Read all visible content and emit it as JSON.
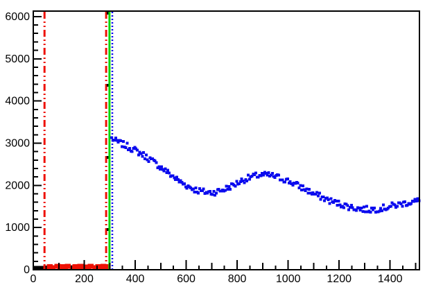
{
  "window": {
    "background": "#ffffff",
    "kind": "root-style-plot"
  },
  "chart_data": {
    "type": "scatter",
    "title": "",
    "subtitle": "",
    "xlabel": "",
    "ylabel": "",
    "grid": false,
    "legend": null,
    "xlim": [
      0,
      1515
    ],
    "ylim": [
      0,
      6130
    ],
    "axis_color": "#000000",
    "x_axis": {
      "major_ticks": [
        0,
        200,
        400,
        600,
        800,
        1000,
        1200,
        1400
      ],
      "major_labels": [
        "0",
        "200",
        "400",
        "600",
        "800",
        "1000",
        "1200",
        "1400"
      ],
      "medium_tick_step": 100,
      "minor_tick_step": 50
    },
    "y_axis": {
      "major_ticks": [
        0,
        1000,
        2000,
        3000,
        4000,
        5000,
        6000
      ],
      "major_labels": [
        "0",
        "1000",
        "2000",
        "3000",
        "4000",
        "5000",
        "6000"
      ],
      "minor_tick_step": 200
    },
    "series": [
      {
        "name": "decaying-oscillation-data",
        "type": "scatter",
        "marker": "filled-square",
        "marker_size_px": 4,
        "color": "#0b0bee",
        "point_step": 5,
        "noise_amplitude": 75,
        "anchors": [
          [
            308,
            3120
          ],
          [
            320,
            3060
          ],
          [
            340,
            3000
          ],
          [
            360,
            2950
          ],
          [
            380,
            2890
          ],
          [
            400,
            2830
          ],
          [
            420,
            2760
          ],
          [
            440,
            2690
          ],
          [
            460,
            2610
          ],
          [
            480,
            2520
          ],
          [
            500,
            2430
          ],
          [
            520,
            2340
          ],
          [
            540,
            2250
          ],
          [
            560,
            2160
          ],
          [
            580,
            2070
          ],
          [
            600,
            2000
          ],
          [
            620,
            1940
          ],
          [
            640,
            1890
          ],
          [
            660,
            1855
          ],
          [
            680,
            1835
          ],
          [
            700,
            1830
          ],
          [
            720,
            1850
          ],
          [
            740,
            1885
          ],
          [
            760,
            1930
          ],
          [
            780,
            1990
          ],
          [
            800,
            2055
          ],
          [
            820,
            2115
          ],
          [
            840,
            2165
          ],
          [
            860,
            2205
          ],
          [
            880,
            2230
          ],
          [
            900,
            2245
          ],
          [
            920,
            2245
          ],
          [
            940,
            2225
          ],
          [
            960,
            2190
          ],
          [
            980,
            2150
          ],
          [
            1000,
            2100
          ],
          [
            1020,
            2050
          ],
          [
            1040,
            1990
          ],
          [
            1060,
            1930
          ],
          [
            1080,
            1865
          ],
          [
            1100,
            1805
          ],
          [
            1120,
            1750
          ],
          [
            1140,
            1695
          ],
          [
            1160,
            1645
          ],
          [
            1180,
            1600
          ],
          [
            1200,
            1565
          ],
          [
            1220,
            1530
          ],
          [
            1240,
            1495
          ],
          [
            1260,
            1465
          ],
          [
            1280,
            1445
          ],
          [
            1300,
            1432
          ],
          [
            1320,
            1428
          ],
          [
            1340,
            1435
          ],
          [
            1360,
            1450
          ],
          [
            1380,
            1472
          ],
          [
            1400,
            1500
          ],
          [
            1420,
            1528
          ],
          [
            1440,
            1555
          ],
          [
            1460,
            1580
          ],
          [
            1480,
            1600
          ],
          [
            1500,
            1620
          ],
          [
            1513,
            1635
          ]
        ]
      }
    ],
    "histograms": [
      {
        "name": "underflow-region-black",
        "color": "#000000",
        "line_width": 5,
        "x_start": 0,
        "bin_width": 10,
        "x_clip": 42,
        "values": [
          48,
          50,
          46,
          50
        ]
      },
      {
        "name": "low-region-red",
        "color": "#ee1105",
        "line_width": 5,
        "x_start": 40,
        "bin_width": 10,
        "x_clip": 297,
        "values": [
          55,
          60,
          90,
          60,
          65,
          95,
          60,
          88,
          60,
          95,
          62,
          58,
          92,
          60,
          96,
          60,
          85,
          60,
          95,
          65,
          60,
          90,
          60,
          96,
          60,
          90
        ]
      }
    ],
    "vlines": [
      {
        "name": "cut-marker-red-left",
        "x": 44,
        "color": "#ee1105",
        "style": "dash-dot-dot",
        "width": 3
      },
      {
        "name": "cut-marker-red-right",
        "x": 286,
        "color": "#ee1105",
        "style": "dash-dot-dot",
        "width": 3
      },
      {
        "name": "cut-marker-black-dotted",
        "x": 292,
        "color": "#000000",
        "style": "sparse-dot",
        "width": 3
      },
      {
        "name": "cut-marker-green-solid",
        "x": 299,
        "color": "#06d806",
        "style": "solid",
        "width": 3
      },
      {
        "name": "cut-marker-blue-dotted",
        "x": 310,
        "color": "#0000ee",
        "style": "dot",
        "width": 2.5
      }
    ],
    "frame_line_width": 2,
    "tick_lengths": {
      "x_major": 13,
      "x_medium": 9,
      "x_minor": 5,
      "y_major": 11,
      "y_minor": 6
    },
    "label_font_px": 16
  }
}
